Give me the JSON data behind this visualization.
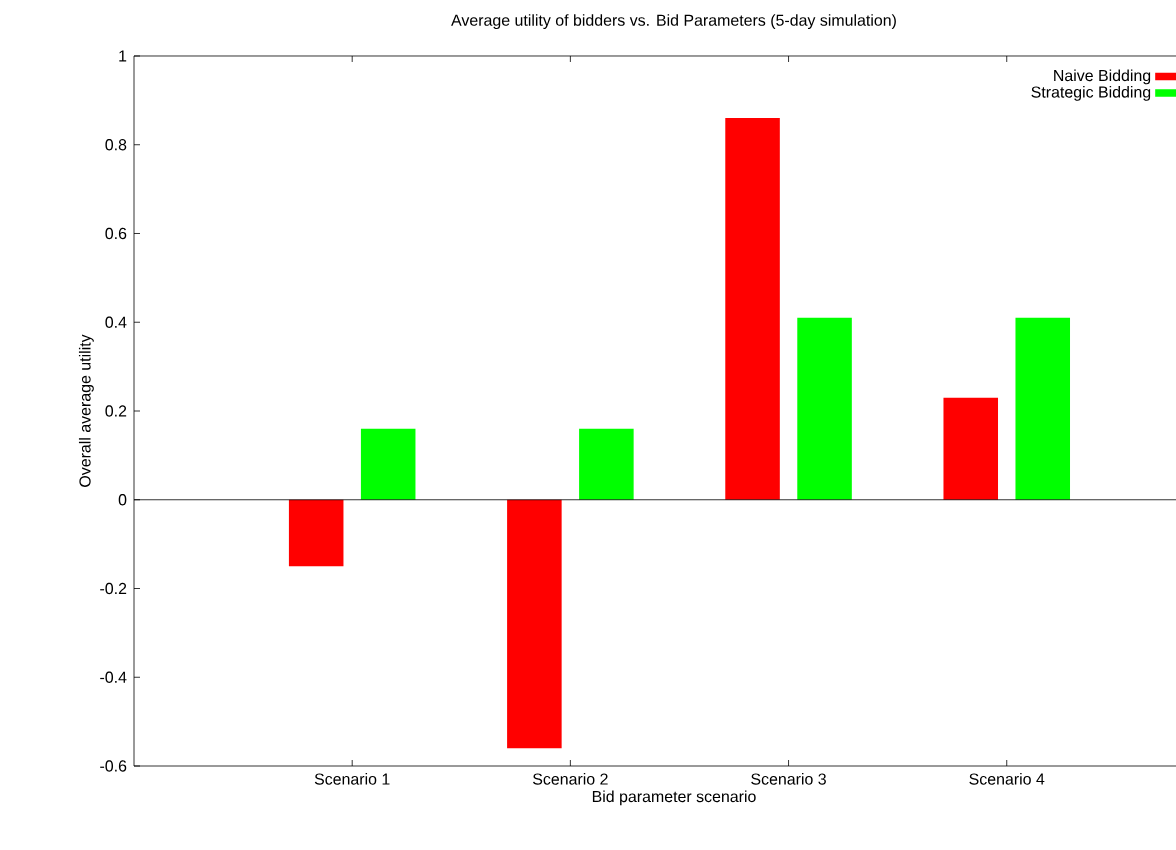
{
  "chart_data": {
    "type": "bar",
    "title": "Average utility of bidders vs. Bid Parameters (5-day simulation)",
    "xlabel": "Bid parameter scenario",
    "ylabel": "Overall average utility",
    "categories": [
      "Scenario 1",
      "Scenario 2",
      "Scenario 3",
      "Scenario 4"
    ],
    "series": [
      {
        "name": "Naive Bidding",
        "color": "#ff0000",
        "values": [
          -0.15,
          -0.56,
          0.86,
          0.23
        ]
      },
      {
        "name": "Strategic Bidding",
        "color": "#00ff00",
        "values": [
          0.16,
          0.16,
          0.41,
          0.41
        ]
      }
    ],
    "ylim": [
      -0.6,
      1
    ],
    "yticks": [
      -0.6,
      -0.4,
      -0.2,
      0,
      0.2,
      0.4,
      0.6,
      0.8,
      1
    ],
    "ref_lines": [
      {
        "axis": "y",
        "value": 0
      }
    ],
    "legend": "top right"
  }
}
